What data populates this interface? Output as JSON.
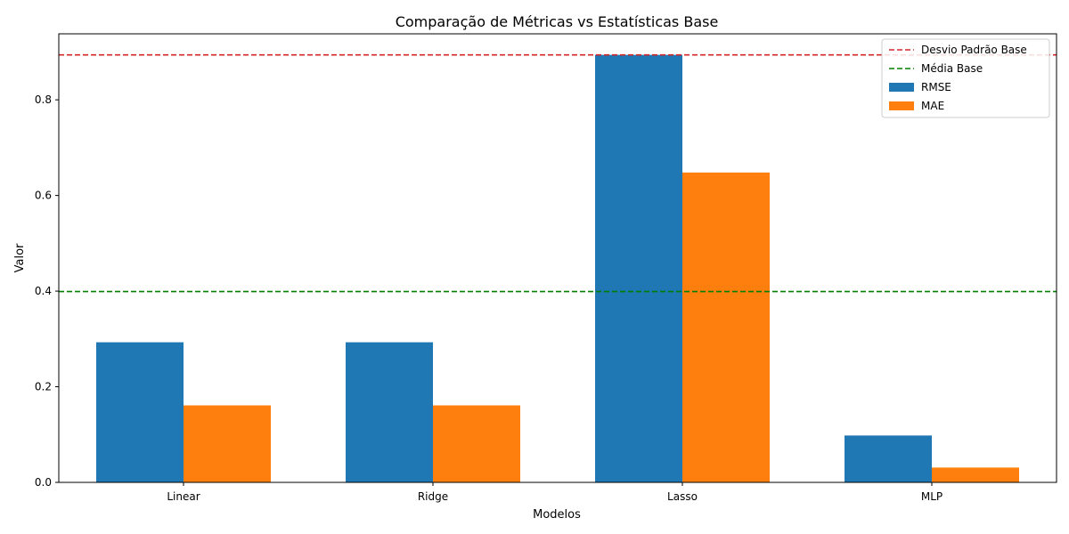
{
  "chart_data": {
    "type": "bar",
    "title": "Comparação de Métricas vs Estatísticas Base",
    "xlabel": "Modelos",
    "ylabel": "Valor",
    "categories": [
      "Linear",
      "Ridge",
      "Lasso",
      "MLP"
    ],
    "series": [
      {
        "name": "RMSE",
        "color": "#1f77b4",
        "values": [
          0.293,
          0.293,
          0.894,
          0.098
        ]
      },
      {
        "name": "MAE",
        "color": "#ff7f0e",
        "values": [
          0.161,
          0.161,
          0.648,
          0.031
        ]
      }
    ],
    "reference_lines": [
      {
        "name": "Desvio Padrão Base",
        "value": 0.894,
        "color": "#d62728",
        "style": "dashed"
      },
      {
        "name": "Média Base",
        "value": 0.399,
        "color": "#008000",
        "style": "dashed"
      }
    ],
    "ylim": [
      0,
      0.938
    ],
    "yticks": [
      "0.0",
      "0.2",
      "0.4",
      "0.6",
      "0.8"
    ],
    "legend_position": "top-right",
    "grid": false
  }
}
